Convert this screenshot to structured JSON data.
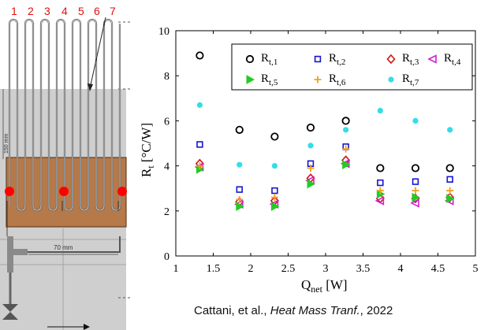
{
  "schematic": {
    "tube_numbers": [
      "1",
      "2",
      "3",
      "4",
      "5",
      "6",
      "7"
    ],
    "dim_vertical": "150 mm",
    "dim_horizontal": "70 mm",
    "colors": {
      "block": "#b5794a",
      "background": "#cfcfcf",
      "marker": "#ff0000"
    }
  },
  "caption": {
    "authors": "Cattani, et al.,",
    "journal": "Heat Mass Tranf.",
    "year": ", 2022"
  },
  "chart_data": {
    "type": "scatter",
    "xlabel": "Q",
    "xlabel_sub": "net",
    "xlabel_unit": " [W]",
    "ylabel": "R",
    "ylabel_sub": "t",
    "ylabel_unit": " [°C/W]",
    "xlim": [
      1,
      5
    ],
    "ylim": [
      0,
      10
    ],
    "xticks": [
      1,
      1.5,
      2,
      2.5,
      3,
      3.5,
      4,
      4.5,
      5
    ],
    "yticks": [
      0,
      2,
      4,
      6,
      8,
      10
    ],
    "xtick_labels": [
      "1",
      "1.5",
      "2",
      "2.5",
      "3",
      "3.5",
      "4",
      "4.5",
      "5"
    ],
    "ytick_labels": [
      "0",
      "2",
      "4",
      "6",
      "8",
      "10"
    ],
    "grid": false,
    "legend_position": "top",
    "x": [
      1.32,
      1.85,
      2.32,
      2.8,
      3.27,
      3.73,
      4.2,
      4.66
    ],
    "series": [
      {
        "name": "R",
        "sub": "t,1",
        "marker": "circle",
        "color": "#000000",
        "values": [
          8.9,
          5.6,
          5.3,
          5.7,
          6.0,
          3.9,
          3.9,
          3.9
        ]
      },
      {
        "name": "R",
        "sub": "t,2",
        "marker": "square",
        "color": "#1515d0",
        "values": [
          4.95,
          2.95,
          2.9,
          4.1,
          4.85,
          3.25,
          3.3,
          3.4
        ]
      },
      {
        "name": "R",
        "sub": "t,3",
        "marker": "diamond",
        "color": "#d01515",
        "values": [
          4.1,
          2.4,
          2.45,
          3.45,
          4.25,
          2.55,
          2.55,
          2.6
        ]
      },
      {
        "name": "R",
        "sub": "t,4",
        "marker": "triangle-left",
        "color": "#cc22cc",
        "values": [
          3.95,
          2.3,
          2.3,
          3.35,
          4.1,
          2.45,
          2.35,
          2.45
        ]
      },
      {
        "name": "R",
        "sub": "t,5",
        "marker": "triangle-right",
        "color": "#22cc22",
        "values": [
          3.85,
          2.2,
          2.2,
          3.2,
          4.05,
          2.75,
          2.6,
          2.55
        ]
      },
      {
        "name": "R",
        "sub": "t,6",
        "marker": "plus",
        "color": "#f0a020",
        "values": [
          4.0,
          2.5,
          2.6,
          3.9,
          4.75,
          2.9,
          2.9,
          2.9
        ]
      },
      {
        "name": "R",
        "sub": "t,7",
        "marker": "dot",
        "color": "#33dde8",
        "values": [
          6.7,
          4.05,
          4.0,
          4.9,
          5.6,
          6.45,
          6.0,
          5.6
        ]
      }
    ]
  }
}
